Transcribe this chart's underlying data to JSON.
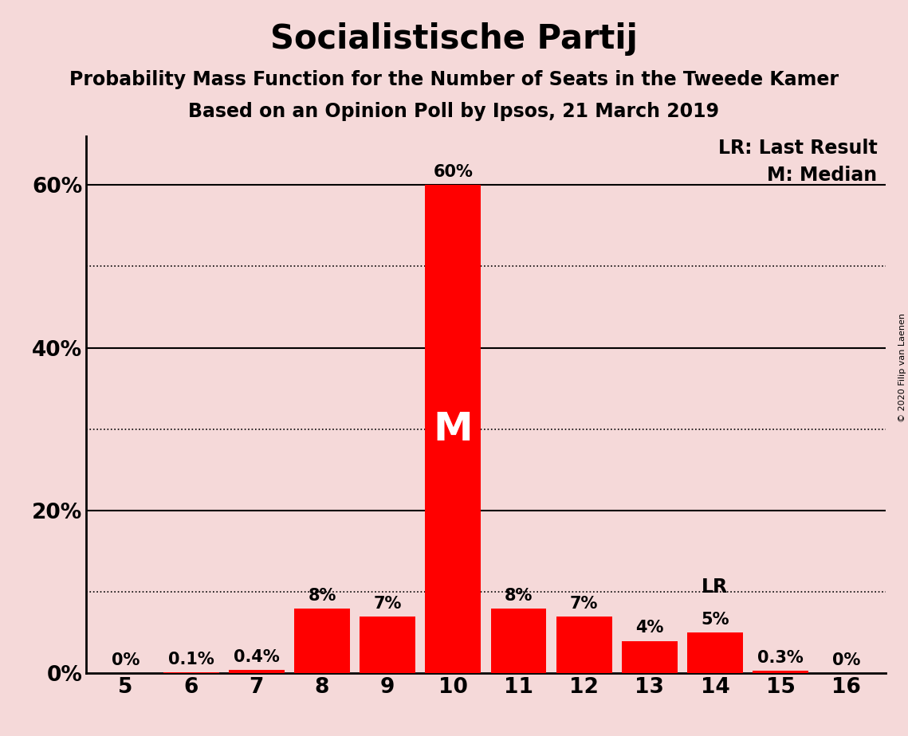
{
  "title": "Socialistische Partij",
  "subtitle1": "Probability Mass Function for the Number of Seats in the Tweede Kamer",
  "subtitle2": "Based on an Opinion Poll by Ipsos, 21 March 2019",
  "seats": [
    5,
    6,
    7,
    8,
    9,
    10,
    11,
    12,
    13,
    14,
    15,
    16
  ],
  "values": [
    0.0,
    0.1,
    0.4,
    8.0,
    7.0,
    60.0,
    8.0,
    7.0,
    4.0,
    5.0,
    0.3,
    0.0
  ],
  "bar_color": "#ff0000",
  "background_color": "#f5d9d9",
  "median_seat": 10,
  "lr_seat": 14,
  "bar_labels": [
    "0%",
    "0.1%",
    "0.4%",
    "8%",
    "7%",
    "60%",
    "8%",
    "7%",
    "4%",
    "5%",
    "0.3%",
    "0%"
  ],
  "legend_lr": "LR: Last Result",
  "legend_m": "M: Median",
  "ytick_labeled": [
    0,
    20,
    40,
    60
  ],
  "ytick_labeled_labels": [
    "0%",
    "20%",
    "40%",
    "60%"
  ],
  "ytick_solid": [
    20,
    40,
    60
  ],
  "ytick_dotted": [
    10,
    30,
    50
  ],
  "ylim": [
    0,
    66
  ],
  "copyright": "© 2020 Filip van Laenen",
  "title_fontsize": 30,
  "subtitle_fontsize": 17,
  "bar_label_fontsize": 15,
  "axis_tick_fontsize": 19,
  "legend_fontsize": 17,
  "lr_label_fontsize": 17,
  "m_fontsize": 36
}
